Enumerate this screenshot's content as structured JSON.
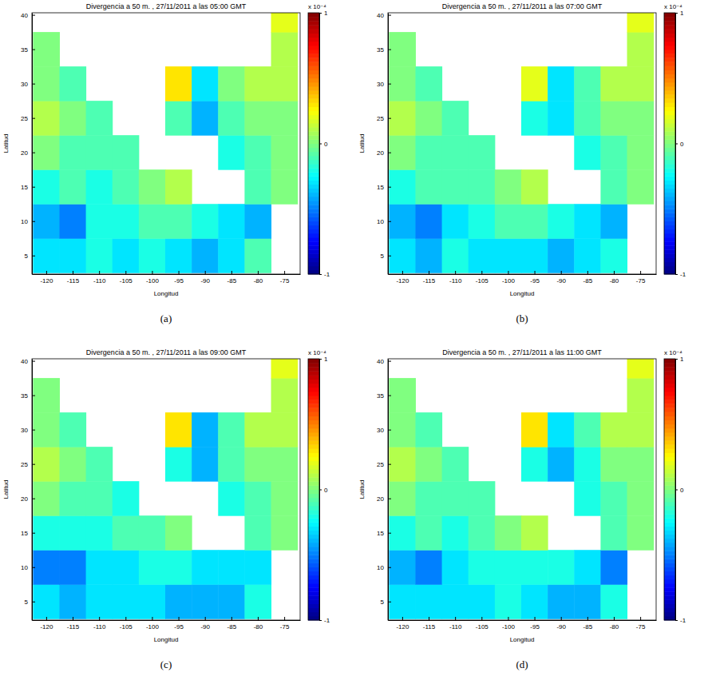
{
  "chart_data": [
    {
      "type": "heatmap",
      "title": "Divergencia a 50 m. , 27/11/2011 a las 05:00 GMT",
      "x_label": "Longitud",
      "y_label": "Latitud",
      "xlim": [
        -122.7,
        -72
      ],
      "ylim": [
        2.3,
        40.3
      ],
      "xticks": [
        -120,
        -115,
        -110,
        -105,
        -100,
        -95,
        -90,
        -85,
        -80,
        -75
      ],
      "yticks": [
        5,
        10,
        15,
        20,
        25,
        30,
        35,
        40
      ],
      "x": [
        -120,
        -115,
        -110,
        -105,
        -100,
        -95,
        -90,
        -85,
        -80,
        -75
      ],
      "y": [
        5,
        10,
        15,
        20,
        25,
        30,
        35,
        40
      ],
      "values": [
        [
          -0.3,
          -0.3,
          -0.2,
          -0.3,
          -0.2,
          -0.3,
          -0.4,
          -0.3,
          -0.1,
          null
        ],
        [
          -0.4,
          -0.5,
          -0.2,
          -0.2,
          -0.1,
          -0.1,
          -0.2,
          -0.3,
          -0.4,
          null
        ],
        [
          -0.2,
          -0.1,
          -0.2,
          -0.1,
          0.0,
          0.1,
          null,
          null,
          -0.1,
          0.0
        ],
        [
          0.0,
          -0.1,
          -0.1,
          -0.1,
          null,
          null,
          null,
          -0.2,
          -0.1,
          0.0
        ],
        [
          0.1,
          0.0,
          -0.1,
          null,
          null,
          -0.1,
          -0.4,
          -0.1,
          0.0,
          0.0
        ],
        [
          0.0,
          -0.1,
          null,
          null,
          null,
          0.3,
          -0.3,
          0.0,
          0.1,
          0.1
        ],
        [
          0.0,
          null,
          null,
          null,
          null,
          null,
          null,
          null,
          null,
          0.1
        ],
        [
          null,
          null,
          null,
          null,
          null,
          null,
          null,
          null,
          null,
          0.2
        ]
      ],
      "colorbar": {
        "range": [
          -1,
          1
        ],
        "ticks": [
          -1,
          0,
          1
        ],
        "label": "x 10⁻⁴"
      },
      "annotations": [
        "(a)"
      ]
    },
    {
      "type": "heatmap",
      "title": "Divergencia a 50 m. , 27/11/2011 a las 07:00 GMT",
      "x_label": "Longitud",
      "y_label": "Latitud",
      "xlim": [
        -122.7,
        -72
      ],
      "ylim": [
        2.3,
        40.3
      ],
      "xticks": [
        -120,
        -115,
        -110,
        -105,
        -100,
        -95,
        -90,
        -85,
        -80,
        -75
      ],
      "yticks": [
        5,
        10,
        15,
        20,
        25,
        30,
        35,
        40
      ],
      "x": [
        -120,
        -115,
        -110,
        -105,
        -100,
        -95,
        -90,
        -85,
        -80,
        -75
      ],
      "y": [
        5,
        10,
        15,
        20,
        25,
        30,
        35,
        40
      ],
      "values": [
        [
          -0.3,
          -0.4,
          -0.2,
          -0.3,
          -0.3,
          -0.3,
          -0.4,
          -0.3,
          -0.2,
          null
        ],
        [
          -0.4,
          -0.5,
          -0.3,
          -0.2,
          -0.1,
          -0.1,
          -0.2,
          -0.3,
          -0.4,
          null
        ],
        [
          -0.2,
          -0.1,
          -0.1,
          -0.1,
          0.0,
          0.1,
          null,
          null,
          -0.1,
          0.0
        ],
        [
          0.0,
          -0.1,
          -0.1,
          -0.1,
          null,
          null,
          null,
          -0.2,
          -0.1,
          0.0
        ],
        [
          0.1,
          0.0,
          -0.1,
          null,
          null,
          -0.2,
          -0.3,
          -0.1,
          0.0,
          0.0
        ],
        [
          0.0,
          -0.1,
          null,
          null,
          null,
          0.2,
          -0.3,
          -0.1,
          0.1,
          0.1
        ],
        [
          0.0,
          null,
          null,
          null,
          null,
          null,
          null,
          null,
          null,
          0.1
        ],
        [
          null,
          null,
          null,
          null,
          null,
          null,
          null,
          null,
          null,
          0.2
        ]
      ],
      "colorbar": {
        "range": [
          -1,
          1
        ],
        "ticks": [
          -1,
          0,
          1
        ],
        "label": "x 10⁻⁴"
      },
      "annotations": [
        "(b)"
      ]
    },
    {
      "type": "heatmap",
      "title": "Divergencia a 50 m. , 27/11/2011 a las 09:00 GMT",
      "x_label": "Longitud",
      "y_label": "Latitud",
      "xlim": [
        -122.7,
        -72
      ],
      "ylim": [
        2.3,
        40.3
      ],
      "xticks": [
        -120,
        -115,
        -110,
        -105,
        -100,
        -95,
        -90,
        -85,
        -80,
        -75
      ],
      "yticks": [
        5,
        10,
        15,
        20,
        25,
        30,
        35,
        40
      ],
      "x": [
        -120,
        -115,
        -110,
        -105,
        -100,
        -95,
        -90,
        -85,
        -80,
        -75
      ],
      "y": [
        5,
        10,
        15,
        20,
        25,
        30,
        35,
        40
      ],
      "values": [
        [
          -0.3,
          -0.4,
          -0.3,
          -0.3,
          -0.3,
          -0.4,
          -0.4,
          -0.4,
          -0.2,
          null
        ],
        [
          -0.5,
          -0.5,
          -0.3,
          -0.3,
          -0.2,
          -0.2,
          -0.3,
          -0.3,
          -0.3,
          null
        ],
        [
          -0.2,
          -0.2,
          -0.2,
          -0.1,
          -0.1,
          0.0,
          null,
          null,
          -0.1,
          0.0
        ],
        [
          0.0,
          -0.1,
          -0.1,
          -0.2,
          null,
          null,
          null,
          -0.2,
          -0.1,
          0.0
        ],
        [
          0.1,
          0.0,
          -0.1,
          null,
          null,
          -0.2,
          -0.4,
          -0.1,
          0.0,
          0.0
        ],
        [
          0.0,
          -0.1,
          null,
          null,
          null,
          0.3,
          -0.4,
          -0.1,
          0.1,
          0.1
        ],
        [
          0.0,
          null,
          null,
          null,
          null,
          null,
          null,
          null,
          null,
          0.1
        ],
        [
          null,
          null,
          null,
          null,
          null,
          null,
          null,
          null,
          null,
          0.2
        ]
      ],
      "colorbar": {
        "range": [
          -1,
          1
        ],
        "ticks": [
          -1,
          0,
          1
        ],
        "label": "x 10⁻⁴"
      },
      "annotations": [
        "(c)"
      ]
    },
    {
      "type": "heatmap",
      "title": "Divergencia a 50 m. , 27/11/2011 a las 11:00 GMT",
      "x_label": "Longitud",
      "y_label": "Latitud",
      "xlim": [
        -122.7,
        -72
      ],
      "ylim": [
        2.3,
        40.3
      ],
      "xticks": [
        -120,
        -115,
        -110,
        -105,
        -100,
        -95,
        -90,
        -85,
        -80,
        -75
      ],
      "yticks": [
        5,
        10,
        15,
        20,
        25,
        30,
        35,
        40
      ],
      "x": [
        -120,
        -115,
        -110,
        -105,
        -100,
        -95,
        -90,
        -85,
        -80,
        -75
      ],
      "y": [
        5,
        10,
        15,
        20,
        25,
        30,
        35,
        40
      ],
      "values": [
        [
          -0.3,
          -0.3,
          -0.3,
          -0.3,
          -0.2,
          -0.3,
          -0.4,
          -0.4,
          -0.2,
          null
        ],
        [
          -0.4,
          -0.5,
          -0.3,
          -0.2,
          -0.2,
          -0.2,
          -0.2,
          -0.3,
          -0.5,
          null
        ],
        [
          -0.2,
          -0.1,
          -0.2,
          -0.1,
          0.0,
          0.1,
          null,
          null,
          -0.1,
          0.0
        ],
        [
          0.0,
          -0.1,
          -0.1,
          -0.1,
          null,
          null,
          null,
          -0.2,
          -0.1,
          0.0
        ],
        [
          0.1,
          0.0,
          -0.1,
          null,
          null,
          -0.2,
          -0.4,
          -0.2,
          0.0,
          0.0
        ],
        [
          0.0,
          -0.1,
          null,
          null,
          null,
          0.3,
          -0.3,
          -0.1,
          0.1,
          0.1
        ],
        [
          0.0,
          null,
          null,
          null,
          null,
          null,
          null,
          null,
          null,
          0.1
        ],
        [
          null,
          null,
          null,
          null,
          null,
          null,
          null,
          null,
          null,
          0.2
        ]
      ],
      "colorbar": {
        "range": [
          -1,
          1
        ],
        "ticks": [
          -1,
          0,
          1
        ],
        "label": "x 10⁻⁴"
      },
      "annotations": [
        "(d)"
      ]
    }
  ]
}
